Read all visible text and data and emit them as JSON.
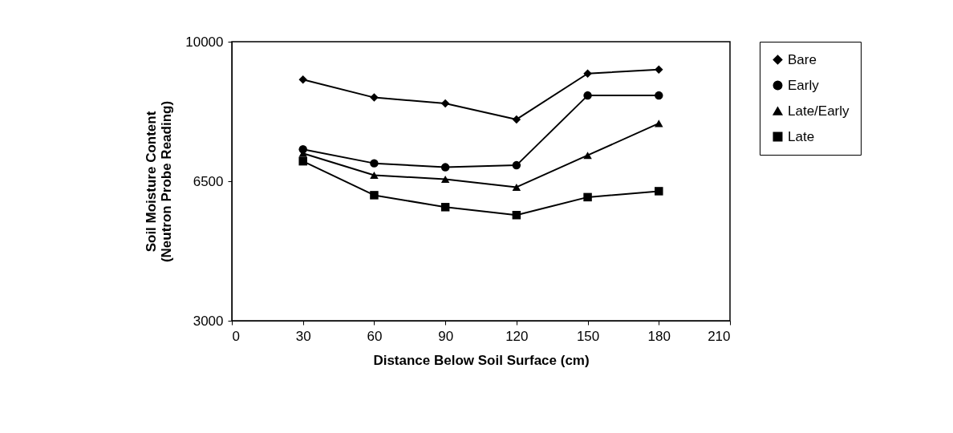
{
  "chart_data": {
    "type": "line",
    "xlabel": "Distance Below Soil Surface (cm)",
    "ylabel": "Soil Moisture Content (Neutron Probe Reading)",
    "x": [
      30,
      60,
      90,
      120,
      150,
      180
    ],
    "series": [
      {
        "name": "Bare",
        "color": "#000000",
        "marker": "diamond",
        "values": [
          9050,
          8600,
          8450,
          8050,
          9200,
          9300
        ]
      },
      {
        "name": "Early",
        "color": "#000000",
        "marker": "circle",
        "values": [
          7300,
          6950,
          6850,
          6900,
          8650,
          8650
        ]
      },
      {
        "name": "Late/Early",
        "color": "#000000",
        "marker": "triangle",
        "values": [
          7200,
          6650,
          6550,
          6350,
          7150,
          7950
        ]
      },
      {
        "name": "Late",
        "color": "#000000",
        "marker": "square",
        "values": [
          7000,
          6150,
          5850,
          5650,
          6100,
          6250
        ]
      }
    ],
    "xlim": [
      0,
      210
    ],
    "xticks": [
      0,
      30,
      60,
      90,
      120,
      150,
      180,
      210
    ],
    "ylim": [
      3000,
      10000
    ],
    "yticks": [
      3000,
      6500,
      10000
    ],
    "grid": false,
    "legend": "right"
  }
}
